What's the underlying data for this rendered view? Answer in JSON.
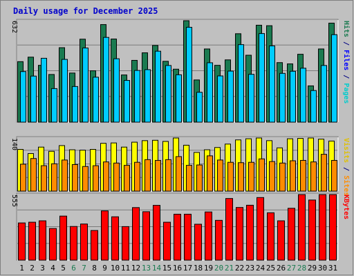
{
  "chart_data": {
    "type": "bar",
    "title": "Daily usage for December 2025",
    "categories": [
      "1",
      "2",
      "3",
      "4",
      "5",
      "6",
      "7",
      "8",
      "9",
      "10",
      "11",
      "12",
      "13",
      "14",
      "15",
      "16",
      "17",
      "18",
      "19",
      "20",
      "21",
      "22",
      "23",
      "24",
      "25",
      "26",
      "27",
      "28",
      "29",
      "30",
      "31"
    ],
    "weekend_days": [
      "6",
      "7",
      "13",
      "14",
      "20",
      "21",
      "27",
      "28"
    ],
    "panels": [
      {
        "id": "hits",
        "ymax": 632,
        "ymax_label": "632",
        "series": [
          {
            "name": "Hits",
            "color": "#1a7a50",
            "values": [
              377,
              405,
              354,
              297,
              464,
              306,
              517,
              320,
              608,
              518,
              294,
              385,
              432,
              478,
              379,
              330,
              644,
              263,
              456,
              354,
              388,
              551,
              417,
              604,
              601,
              371,
              363,
              423,
              226,
              456,
              617
            ]
          },
          {
            "name": "Files",
            "color": "#00ccff",
            "values": [
              315,
              287,
              398,
              209,
              391,
              222,
              462,
              280,
              528,
              395,
              260,
              322,
              327,
              442,
              353,
              295,
              591,
              186,
              370,
              288,
              318,
              483,
              298,
              552,
              475,
              304,
              317,
              336,
              197,
              353,
              545
            ]
          },
          {
            "name": "Pages",
            "color": "#00ccff",
            "values": []
          }
        ],
        "axis_words": [
          {
            "text": "Pages",
            "color": "#00cccc"
          },
          {
            "text": " / ",
            "color": "#000080"
          },
          {
            "text": "Files",
            "color": "#0000ff"
          },
          {
            "text": " / ",
            "color": "#000080"
          },
          {
            "text": "Hits",
            "color": "#1a7a50"
          }
        ]
      },
      {
        "id": "visits",
        "ymax": 140,
        "ymax_label": "140",
        "series": [
          {
            "name": "Visits",
            "color": "#ffff00",
            "values": [
              110,
              99,
              116,
              105,
              120,
              109,
              108,
              110,
              126,
              127,
              116,
              129,
              133,
              134,
              131,
              151,
              121,
              102,
              109,
              115,
              124,
              135,
              138,
              158,
              133,
              114,
              138,
              139,
              143,
              137,
              132
            ]
          },
          {
            "name": "Sites",
            "color": "#ff8c00",
            "values": [
              71,
              86,
              67,
              72,
              82,
              70,
              65,
              67,
              77,
              74,
              68,
              76,
              83,
              81,
              83,
              91,
              68,
              69,
              93,
              82,
              76,
              75,
              76,
              85,
              78,
              74,
              80,
              81,
              77,
              97,
              81
            ]
          }
        ],
        "axis_words": [
          {
            "text": "Sites",
            "color": "#ff8c00"
          },
          {
            "text": " / ",
            "color": "#000080"
          },
          {
            "text": "Visits",
            "color": "#e0c000"
          }
        ]
      },
      {
        "id": "kbytes",
        "ymax": 555,
        "ymax_label": "555",
        "series": [
          {
            "name": "KBytes",
            "color": "#ff0000",
            "values": [
              315,
              321,
              333,
              268,
              373,
              285,
              306,
              251,
              417,
              367,
              284,
              445,
              410,
              464,
              321,
              389,
              389,
              304,
              408,
              337,
              522,
              446,
              465,
              530,
              401,
              333,
              439,
              586,
              509,
              556,
              602
            ]
          }
        ],
        "axis_words": [
          {
            "text": "KBytes",
            "color": "#ff0000"
          }
        ]
      }
    ],
    "grid": true
  }
}
